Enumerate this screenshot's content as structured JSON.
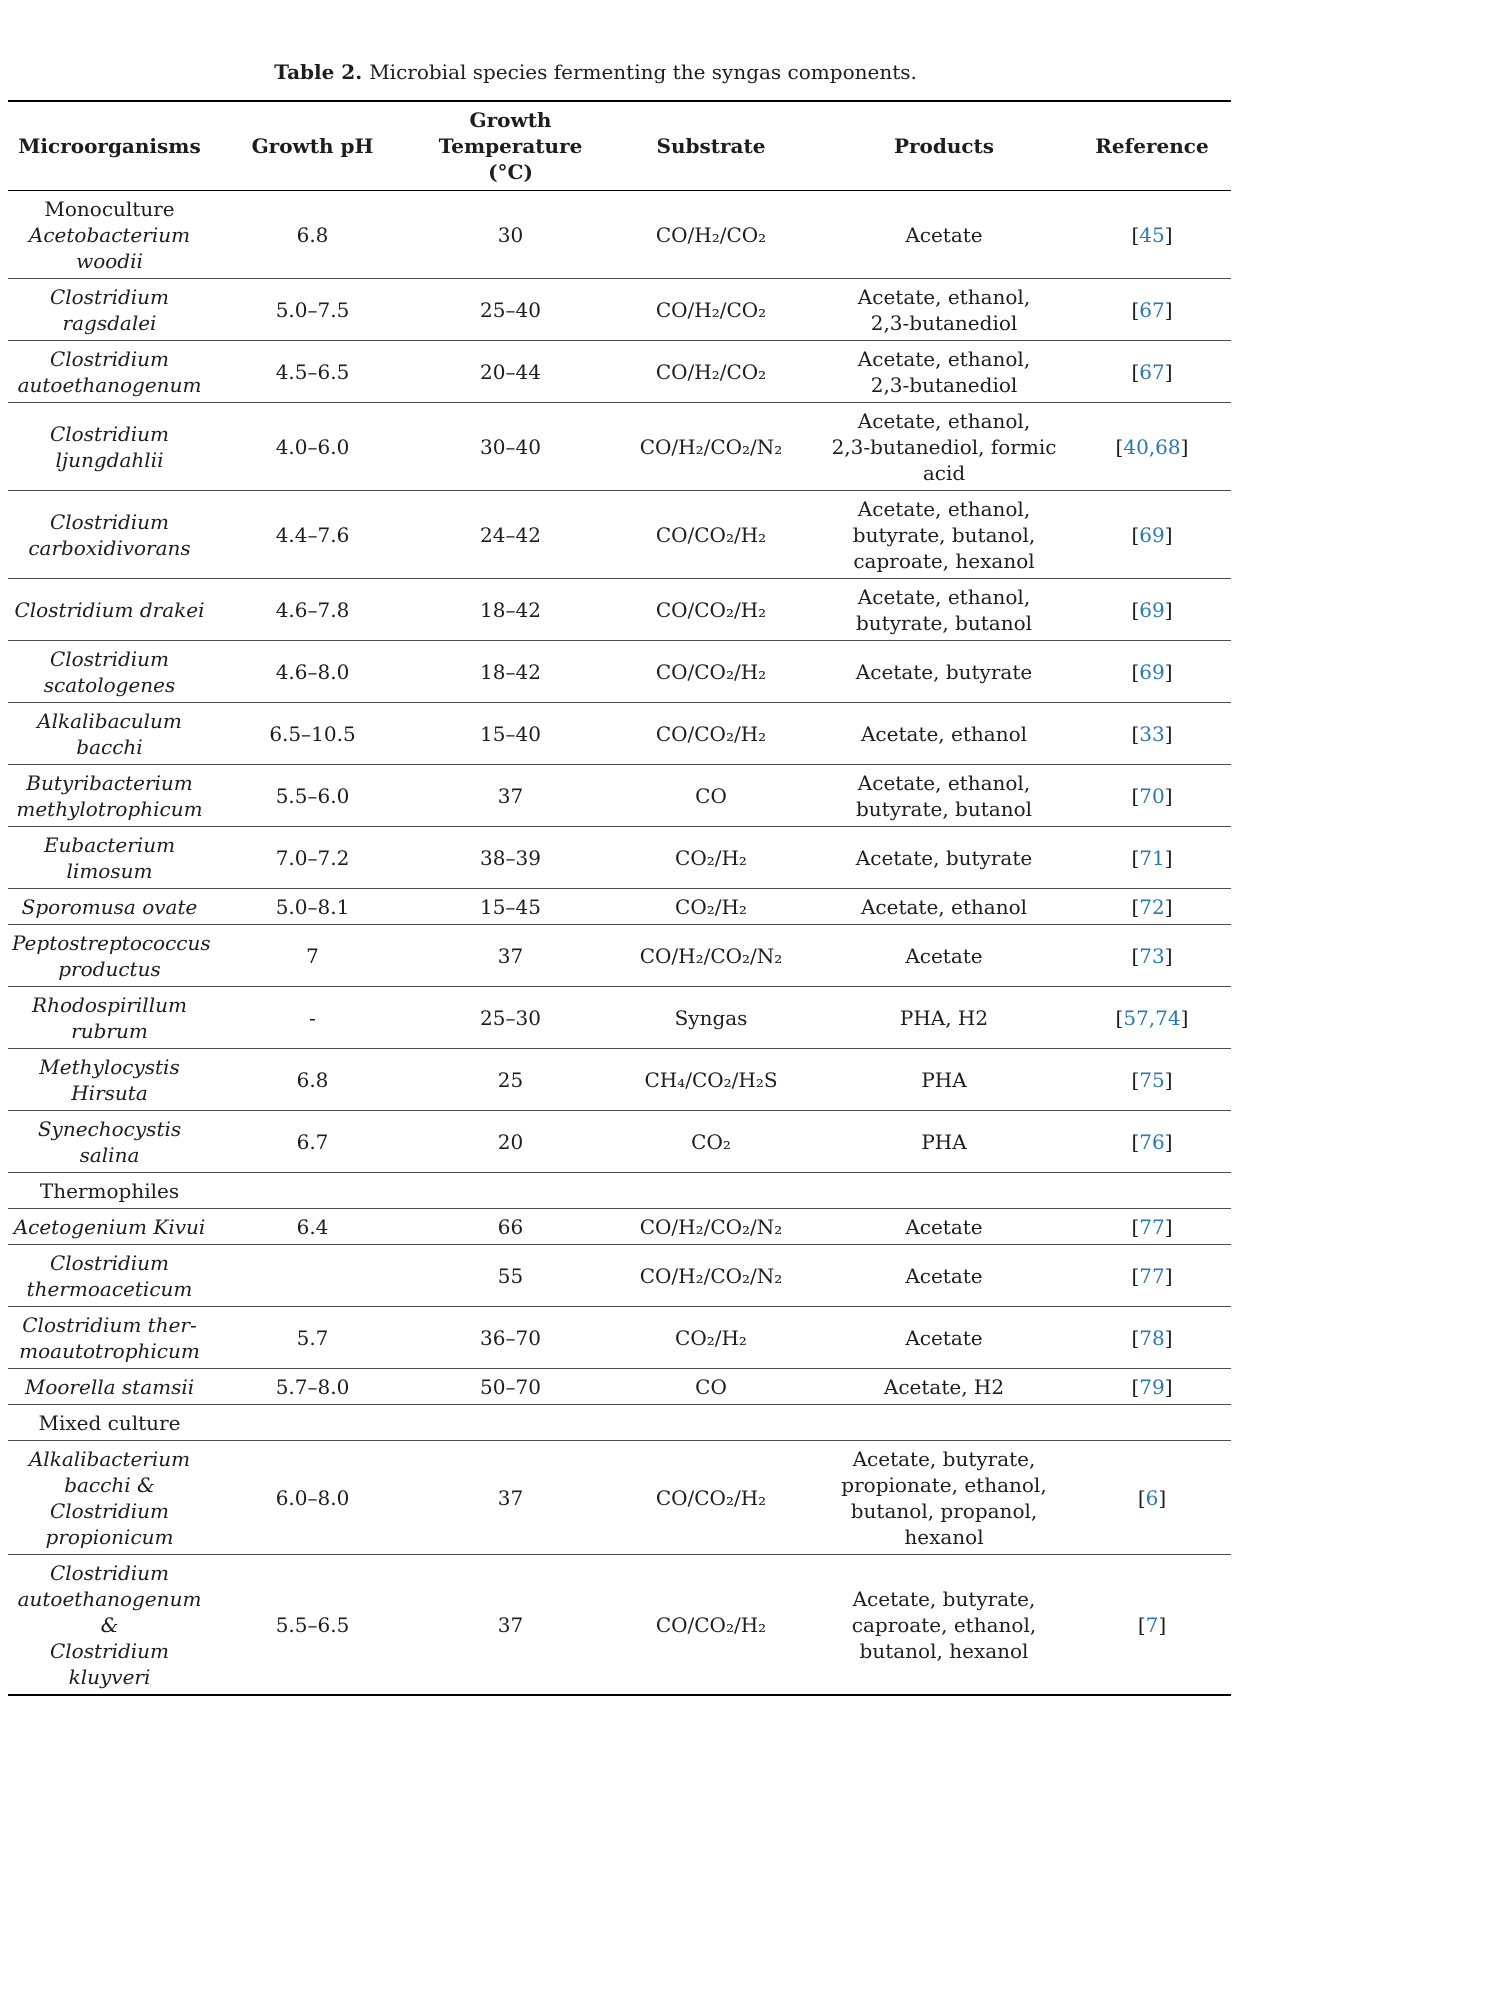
{
  "caption": {
    "label": "Table 2.",
    "text": "Microbial species fermenting the syngas components."
  },
  "colors": {
    "reference_link": "#2878b5",
    "body_text": "#1d1d1d",
    "rule": "#000000"
  },
  "columns": [
    "Microorganisms",
    "Growth pH",
    "Growth\nTemperature (°C)",
    "Substrate",
    "Products",
    "Reference"
  ],
  "rows": [
    {
      "type": "data",
      "prefix": "Monoculture",
      "organism": "Acetobacterium\nwoodii",
      "ph": "6.8",
      "temp": "30",
      "substrate": "CO/H₂/CO₂",
      "products": "Acetate",
      "ref": "[45]"
    },
    {
      "type": "data",
      "organism": "Clostridium\nragsdalei",
      "ph": "5.0–7.5",
      "temp": "25–40",
      "substrate": "CO/H₂/CO₂",
      "products": "Acetate, ethanol,\n2,3-butanediol",
      "ref": "[67]"
    },
    {
      "type": "data",
      "organism": "Clostridium\nautoethanogenum",
      "ph": "4.5–6.5",
      "temp": "20–44",
      "substrate": "CO/H₂/CO₂",
      "products": "Acetate, ethanol,\n2,3-butanediol",
      "ref": "[67]"
    },
    {
      "type": "data",
      "organism": "Clostridium\nljungdahlii",
      "ph": "4.0–6.0",
      "temp": "30–40",
      "substrate": "CO/H₂/CO₂/N₂",
      "products": "Acetate, ethanol,\n2,3-butanediol, formic\nacid",
      "ref": "[40,68]"
    },
    {
      "type": "data",
      "organism": "Clostridium\ncarboxidivorans",
      "ph": "4.4–7.6",
      "temp": "24–42",
      "substrate": "CO/CO₂/H₂",
      "products": "Acetate, ethanol,\nbutyrate, butanol,\ncaproate, hexanol",
      "ref": "[69]"
    },
    {
      "type": "data",
      "organism": "Clostridium drakei",
      "ph": "4.6–7.8",
      "temp": "18–42",
      "substrate": "CO/CO₂/H₂",
      "products": "Acetate, ethanol,\nbutyrate, butanol",
      "ref": "[69]"
    },
    {
      "type": "data",
      "organism": "Clostridium\nscatologenes",
      "ph": "4.6–8.0",
      "temp": "18–42",
      "substrate": "CO/CO₂/H₂",
      "products": "Acetate, butyrate",
      "ref": "[69]"
    },
    {
      "type": "data",
      "organism": "Alkalibaculum\nbacchi",
      "ph": "6.5–10.5",
      "temp": "15–40",
      "substrate": "CO/CO₂/H₂",
      "products": "Acetate, ethanol",
      "ref": "[33]"
    },
    {
      "type": "data",
      "organism": "Butyribacterium\nmethylotrophicum",
      "ph": "5.5–6.0",
      "temp": "37",
      "substrate": "CO",
      "products": "Acetate, ethanol,\nbutyrate, butanol",
      "ref": "[70]"
    },
    {
      "type": "data",
      "organism": "Eubacterium\nlimosum",
      "ph": "7.0–7.2",
      "temp": "38–39",
      "substrate": "CO₂/H₂",
      "products": "Acetate, butyrate",
      "ref": "[71]"
    },
    {
      "type": "data",
      "organism": "Sporomusa ovate",
      "ph": "5.0–8.1",
      "temp": "15–45",
      "substrate": "CO₂/H₂",
      "products": "Acetate, ethanol",
      "ref": "[72]"
    },
    {
      "type": "data",
      "organism": "Peptostreptococcus\nproductus",
      "ph": "7",
      "temp": "37",
      "substrate": "CO/H₂/CO₂/N₂",
      "products": "Acetate",
      "ref": "[73]"
    },
    {
      "type": "data",
      "organism": "Rhodospirillum\nrubrum",
      "ph": "-",
      "temp": "25–30",
      "substrate": "Syngas",
      "products": "PHA, H2",
      "ref": "[57,74]"
    },
    {
      "type": "data",
      "organism": "Methylocystis\nHirsuta",
      "ph": "6.8",
      "temp": "25",
      "substrate": "CH₄/CO₂/H₂S",
      "products": "PHA",
      "ref": "[75]"
    },
    {
      "type": "data",
      "organism": "Synechocystis salina",
      "ph": "6.7",
      "temp": "20",
      "substrate": "CO₂",
      "products": "PHA",
      "ref": "[76]"
    },
    {
      "type": "section",
      "label": "Thermophiles"
    },
    {
      "type": "data",
      "organism": "Acetogenium Kivui",
      "ph": "6.4",
      "temp": "66",
      "substrate": "CO/H₂/CO₂/N₂",
      "products": "Acetate",
      "ref": "[77]"
    },
    {
      "type": "data",
      "organism": "Clostridium\nthermoaceticum",
      "ph": "",
      "temp": "55",
      "substrate": "CO/H₂/CO₂/N₂",
      "products": "Acetate",
      "ref": "[77]"
    },
    {
      "type": "data",
      "organism": "Clostridium ther-\nmoautotrophicum",
      "ph": "5.7",
      "temp": "36–70",
      "substrate": "CO₂/H₂",
      "products": "Acetate",
      "ref": "[78]"
    },
    {
      "type": "data",
      "organism": "Moorella stamsii",
      "ph": "5.7–8.0",
      "temp": "50–70",
      "substrate": "CO",
      "products": "Acetate, H2",
      "ref": "[79]"
    },
    {
      "type": "section",
      "label": "Mixed culture"
    },
    {
      "type": "data",
      "organism": "Alkalibacterium\nbacchi &\nClostridium\npropionicum",
      "ph": "6.0–8.0",
      "temp": "37",
      "substrate": "CO/CO₂/H₂",
      "products": "Acetate, butyrate,\npropionate, ethanol,\nbutanol, propanol,\nhexanol",
      "ref": "[6]"
    },
    {
      "type": "data",
      "organism": "Clostridium\nautoethanogenum &\nClostridium kluyveri",
      "ph": "5.5–6.5",
      "temp": "37",
      "substrate": "CO/CO₂/H₂",
      "products": "Acetate, butyrate,\ncaproate, ethanol,\nbutanol, hexanol",
      "ref": "[7]"
    }
  ]
}
